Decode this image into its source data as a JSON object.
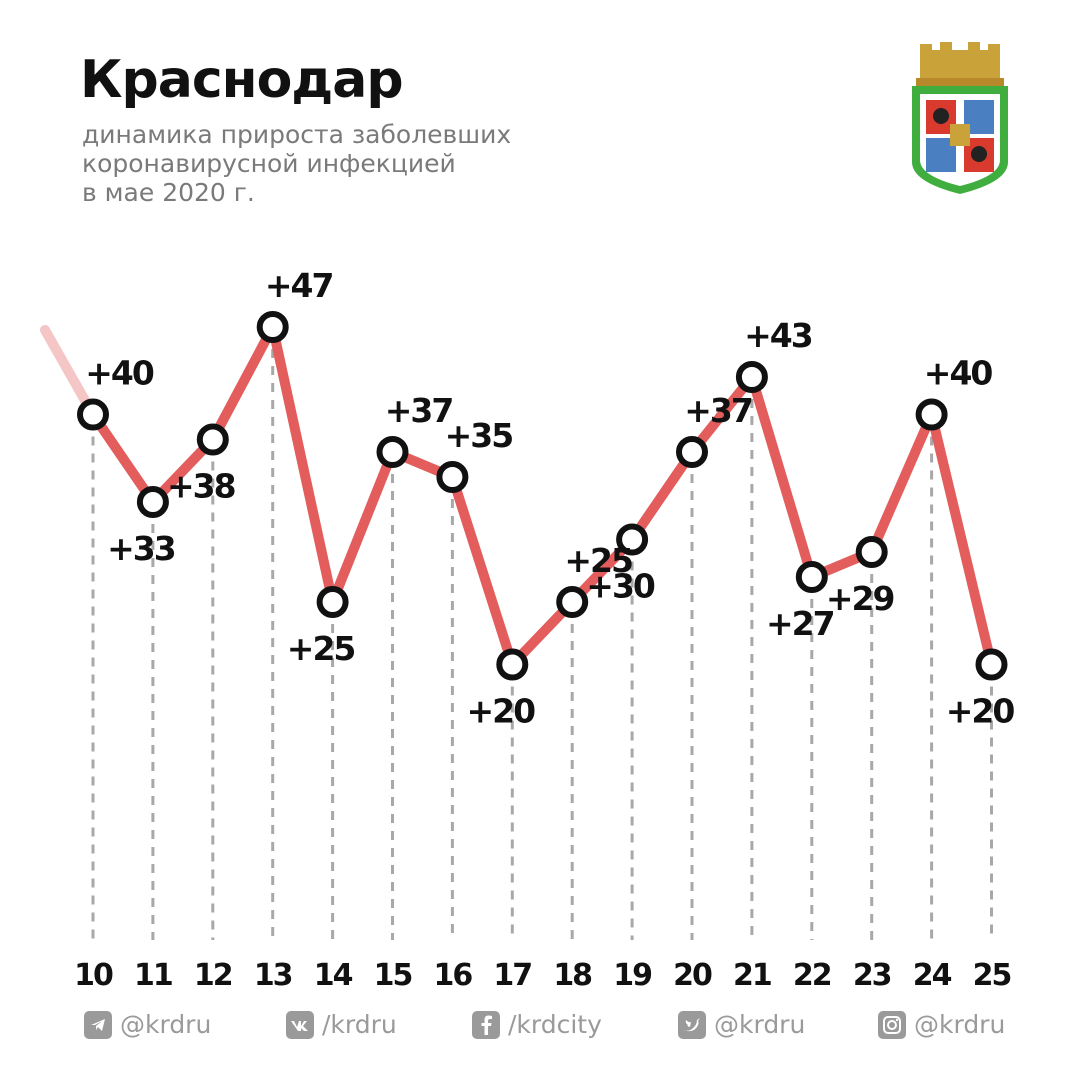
{
  "header": {
    "title": "Краснодар",
    "subtitle_lines": [
      "динамика прироста заболевших",
      "коронавирусной инфекцией",
      "в мае 2020 г."
    ]
  },
  "colors": {
    "line": "#e35d5d",
    "marker_stroke": "#111111",
    "gridline": "#a8a8a8",
    "text": "#111111",
    "muted": "#9a9a9a"
  },
  "chart_data": {
    "type": "line",
    "categories": [
      "10",
      "11",
      "12",
      "13",
      "14",
      "15",
      "16",
      "17",
      "18",
      "19",
      "20",
      "21",
      "22",
      "23",
      "24",
      "25"
    ],
    "values": [
      40,
      33,
      38,
      47,
      25,
      37,
      35,
      20,
      25,
      30,
      37,
      43,
      27,
      29,
      40,
      20
    ],
    "labels": [
      "+40",
      "+33",
      "+38",
      "+47",
      "+25",
      "+37",
      "+35",
      "+20",
      "+25",
      "+30",
      "+37",
      "+43",
      "+27",
      "+29",
      "+40",
      "+20"
    ],
    "label_placement": [
      "above",
      "below",
      "below",
      "above",
      "below",
      "above",
      "above",
      "below",
      "above",
      "below",
      "above",
      "above",
      "below",
      "below",
      "above",
      "below"
    ],
    "grid_vertical_dashed": true,
    "title": "",
    "xlabel": "",
    "ylabel": ""
  },
  "footer": {
    "items": [
      {
        "icon": "telegram-icon",
        "text": "@krdru"
      },
      {
        "icon": "vk-icon",
        "text": "/krdru"
      },
      {
        "icon": "facebook-icon",
        "text": "/krdcity"
      },
      {
        "icon": "twitter-icon",
        "text": "@krdru"
      },
      {
        "icon": "instagram-icon",
        "text": "@krdru"
      }
    ]
  }
}
